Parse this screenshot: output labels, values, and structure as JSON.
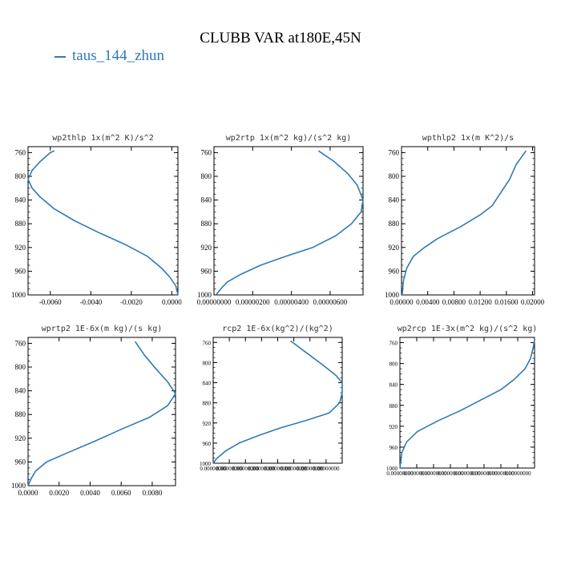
{
  "figure": {
    "title": "CLUBB VAR at180E,45N",
    "legend_label": "taus_144_zhun",
    "line_color": "#2e7ab8"
  },
  "chart_data": [
    {
      "type": "line",
      "title": "wp2thlp  1x(m^2 K)/s^2",
      "ylim": [
        1000,
        750
      ],
      "yticks": [
        760,
        800,
        840,
        880,
        920,
        960,
        1000
      ],
      "xlim": [
        -0.0071,
        0.0003
      ],
      "xticks": [
        -0.006,
        -0.004,
        -0.002,
        0.0
      ],
      "xtick_labels": [
        "-0.0060",
        "-0.0040",
        "-0.0020",
        "0.0000"
      ],
      "series": [
        {
          "x": [
            -0.0058,
            -0.006,
            -0.0065,
            -0.0069,
            -0.0071,
            -0.0069,
            -0.0065,
            -0.0058,
            -0.0048,
            -0.0036,
            -0.0023,
            -0.0012,
            -0.0005,
            -0.0001,
            0.0002,
            0.0003
          ],
          "y": [
            757,
            760,
            775,
            790,
            805,
            820,
            835,
            855,
            875,
            895,
            915,
            935,
            955,
            970,
            985,
            1000
          ]
        }
      ]
    },
    {
      "type": "line",
      "title": "wp2rtp  1x(m^2 kg)/(s^2 kg)",
      "ylim": [
        1000,
        750
      ],
      "yticks": [
        760,
        800,
        840,
        880,
        920,
        960,
        1000
      ],
      "xlim": [
        0.0,
        7.7e-06
      ],
      "xticks": [
        0.0,
        2e-06,
        4e-06,
        6e-06
      ],
      "xtick_labels": [
        "0.00000000",
        "0.00000200",
        "0.00000400",
        "0.00000600"
      ],
      "series": [
        {
          "x": [
            5.4e-06,
            6.2e-06,
            6.9e-06,
            7.4e-06,
            7.7e-06,
            7.6e-06,
            7.1e-06,
            6.3e-06,
            5.1e-06,
            3.7e-06,
            2.4e-06,
            1.4e-06,
            7e-07,
            4e-07,
            1e-07
          ],
          "y": [
            757,
            775,
            795,
            815,
            840,
            860,
            880,
            900,
            920,
            935,
            950,
            965,
            978,
            988,
            1000
          ]
        }
      ]
    },
    {
      "type": "line",
      "title": "wpthlp2  1x(m K^2)/s",
      "ylim": [
        1000,
        750
      ],
      "yticks": [
        760,
        800,
        840,
        880,
        920,
        960,
        1000
      ],
      "xlim": [
        0.0,
        0.0203
      ],
      "xticks": [
        0.0,
        0.004,
        0.008,
        0.012,
        0.016,
        0.02
      ],
      "xtick_labels": [
        "0.00000",
        "0.00400",
        "0.00800",
        "0.01200",
        "0.01600",
        "0.02000"
      ],
      "series": [
        {
          "x": [
            0.019,
            0.0175,
            0.0165,
            0.015,
            0.0138,
            0.012,
            0.009,
            0.0055,
            0.0035,
            0.0018,
            0.0008,
            0.0003,
            0.0001
          ],
          "y": [
            757,
            780,
            805,
            830,
            850,
            865,
            885,
            905,
            920,
            935,
            955,
            975,
            1000
          ]
        }
      ]
    },
    {
      "type": "line",
      "title": "wprtp2  1E-6x(m kg)/(s kg)",
      "ylim": [
        1000,
        750
      ],
      "yticks": [
        760,
        800,
        840,
        880,
        920,
        960,
        1000
      ],
      "xlim": [
        0.0,
        0.0095
      ],
      "xticks": [
        0.0,
        0.002,
        0.004,
        0.006,
        0.008
      ],
      "xtick_labels": [
        "0.0000",
        "0.0020",
        "0.0040",
        "0.0060",
        "0.0080"
      ],
      "series": [
        {
          "x": [
            0.0069,
            0.0075,
            0.0083,
            0.009,
            0.0095,
            0.009,
            0.0078,
            0.006,
            0.0043,
            0.0025,
            0.0012,
            0.0005,
            0.0002,
            0.0
          ],
          "y": [
            757,
            780,
            805,
            825,
            845,
            865,
            885,
            905,
            925,
            945,
            960,
            975,
            988,
            1000
          ]
        }
      ]
    },
    {
      "type": "line",
      "title": "rcp2  1E-6x(kg^2)/(kg^2)",
      "ylim": [
        1000,
        750
      ],
      "yticks": [
        760,
        800,
        840,
        880,
        920,
        960,
        1000
      ],
      "xlim": [
        0.0,
        1.0
      ],
      "xticks": [
        0.0,
        0.125,
        0.25,
        0.375,
        0.5,
        0.625,
        0.75,
        0.875
      ],
      "xtick_labels": [
        "0.00000000",
        "0.00000000",
        "0.00000000",
        "0.00000000",
        "0.00000000",
        "0.00000000",
        "0.00000000",
        "0.00000000"
      ],
      "series": [
        {
          "x": [
            0.6,
            0.72,
            0.85,
            0.95,
            1.0,
            1.0,
            0.98,
            0.9,
            0.72,
            0.52,
            0.35,
            0.2,
            0.1,
            0.03,
            0.0
          ],
          "y": [
            757,
            780,
            805,
            825,
            840,
            860,
            880,
            900,
            915,
            930,
            945,
            960,
            975,
            990,
            1000
          ]
        }
      ]
    },
    {
      "type": "line",
      "title": "wp2rcp  1E-3x(m^2 kg)/(s^2 kg)",
      "ylim": [
        1000,
        750
      ],
      "yticks": [
        760,
        800,
        840,
        880,
        920,
        960,
        1000
      ],
      "xlim": [
        0.0,
        1.0
      ],
      "xticks": [
        0.0,
        0.125,
        0.25,
        0.375,
        0.5,
        0.625,
        0.75,
        0.875
      ],
      "xtick_labels": [
        "0.00000000",
        "0.00000000",
        "0.00000000",
        "0.00000000",
        "0.00000000",
        "0.00000000",
        "0.00000000",
        "0.00000000"
      ],
      "series": [
        {
          "x": [
            1.0,
            0.99,
            0.97,
            0.93,
            0.85,
            0.75,
            0.6,
            0.45,
            0.28,
            0.13,
            0.05,
            0.015,
            0.0
          ],
          "y": [
            755,
            770,
            790,
            810,
            830,
            850,
            870,
            890,
            910,
            930,
            950,
            970,
            1000
          ]
        }
      ]
    }
  ]
}
